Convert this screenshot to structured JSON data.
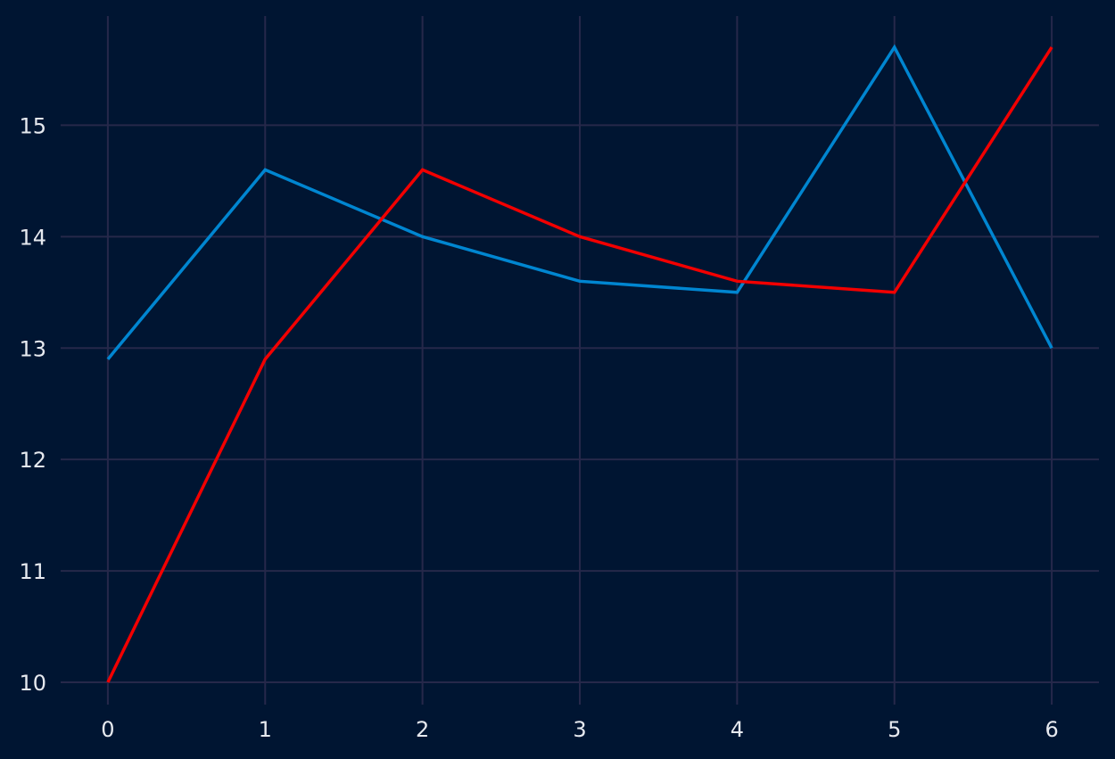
{
  "chart_data": {
    "type": "line",
    "title": "",
    "xlabel": "",
    "ylabel": "",
    "grid": true,
    "x": [
      0,
      1,
      2,
      3,
      4,
      5,
      6
    ],
    "xlim": [
      -0.3,
      6.3
    ],
    "ylim": [
      9.8,
      15.98
    ],
    "xticks": [
      "0",
      "1",
      "2",
      "3",
      "4",
      "5",
      "6"
    ],
    "yticks": [
      "10",
      "11",
      "12",
      "13",
      "14",
      "15"
    ],
    "series": [
      {
        "values": [
          12.9,
          14.6,
          14.0,
          13.6,
          13.5,
          15.7,
          13.0
        ],
        "color": "#0086d1"
      },
      {
        "values": [
          10.0,
          12.9,
          14.6,
          14.0,
          13.6,
          13.5,
          15.7
        ],
        "color": "#f20000"
      }
    ],
    "colors": {
      "background": "#001532",
      "grid": "#26284a",
      "tick_text": "#e6e9ef"
    }
  }
}
